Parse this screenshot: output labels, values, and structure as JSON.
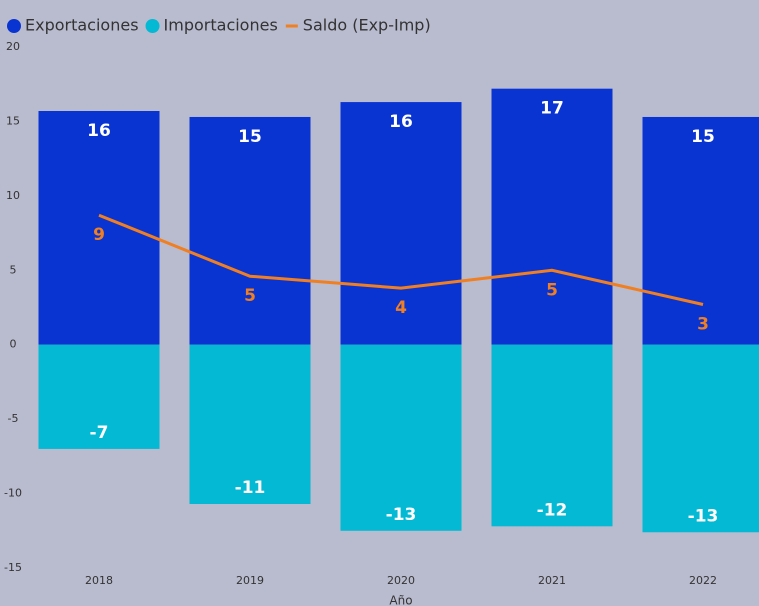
{
  "chart_data": {
    "type": "bar_line",
    "categories": [
      "2018",
      "2019",
      "2020",
      "2021",
      "2022"
    ],
    "x_label": "Año",
    "series": [
      {
        "name": "Exportaciones",
        "color": "#0a34d2",
        "type": "bar",
        "values": [
          15.7,
          15.3,
          16.3,
          17.2,
          15.3
        ],
        "value_labels": [
          "16",
          "15",
          "16",
          "17",
          "15"
        ]
      },
      {
        "name": "Importaciones",
        "color": "#04b9d3",
        "type": "bar",
        "values": [
          -7.0,
          -10.7,
          -12.5,
          -12.2,
          -12.6
        ],
        "value_labels": [
          "-7",
          "-11",
          "-13",
          "-12",
          "-13"
        ]
      },
      {
        "name": "Saldo (Exp-Imp)",
        "color": "#f07f22",
        "type": "line",
        "values": [
          8.7,
          4.6,
          3.8,
          5.0,
          2.7
        ],
        "value_labels": [
          "9",
          "5",
          "4",
          "5",
          "3"
        ]
      }
    ],
    "ylim": [
      -15,
      20
    ],
    "yticks": [
      -15,
      -10,
      -5,
      0,
      5,
      10,
      15,
      20
    ]
  }
}
